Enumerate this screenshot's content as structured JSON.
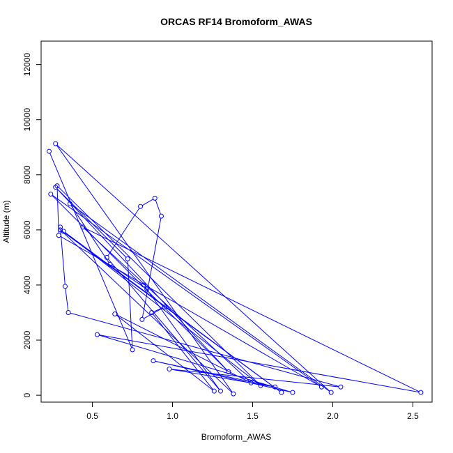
{
  "chart_data": {
    "type": "line",
    "title": "ORCAS RF14 Bromoform_AWAS",
    "xlabel": "Bromoform_AWAS",
    "ylabel": "Altitude (m)",
    "xlim": [
      0.18,
      2.62
    ],
    "ylim": [
      -250,
      12850
    ],
    "xticks": [
      0.5,
      1.0,
      1.5,
      2.0,
      2.5
    ],
    "xtick_labels": [
      "0.5",
      "1.0",
      "1.5",
      "2.0",
      "2.5"
    ],
    "yticks": [
      0,
      2000,
      4000,
      6000,
      8000,
      10000,
      12000
    ],
    "ytick_labels": [
      "0",
      "2000",
      "4000",
      "6000",
      "8000",
      "10000",
      "12000"
    ],
    "grid": false,
    "series": [
      {
        "color": "#0000ff",
        "marker": "open-circle",
        "x": [
          0.23,
          0.75,
          0.72,
          0.27,
          1.35,
          0.24,
          1.93,
          0.29,
          0.28,
          1.55,
          0.32,
          1.68,
          0.3,
          1.38,
          0.27,
          1.99,
          0.36,
          0.61,
          0.84,
          0.82,
          1.3,
          0.59,
          0.8,
          0.89,
          0.93,
          0.81,
          0.95,
          0.87,
          1.26,
          0.64,
          1.49,
          0.44,
          2.55,
          0.53,
          1.75,
          0.88,
          1.64,
          0.98,
          2.05,
          0.35,
          0.33,
          0.3
        ],
        "y": [
          8850,
          1650,
          4950,
          7550,
          850,
          7300,
          300,
          5800,
          7600,
          350,
          5950,
          100,
          6000,
          50,
          9130,
          100,
          6950,
          4750,
          3850,
          4000,
          150,
          5000,
          6850,
          7150,
          6500,
          2750,
          3200,
          3000,
          150,
          2950,
          450,
          6100,
          100,
          2200,
          100,
          1250,
          300,
          950,
          300,
          3000,
          3950,
          6100
        ]
      }
    ]
  }
}
